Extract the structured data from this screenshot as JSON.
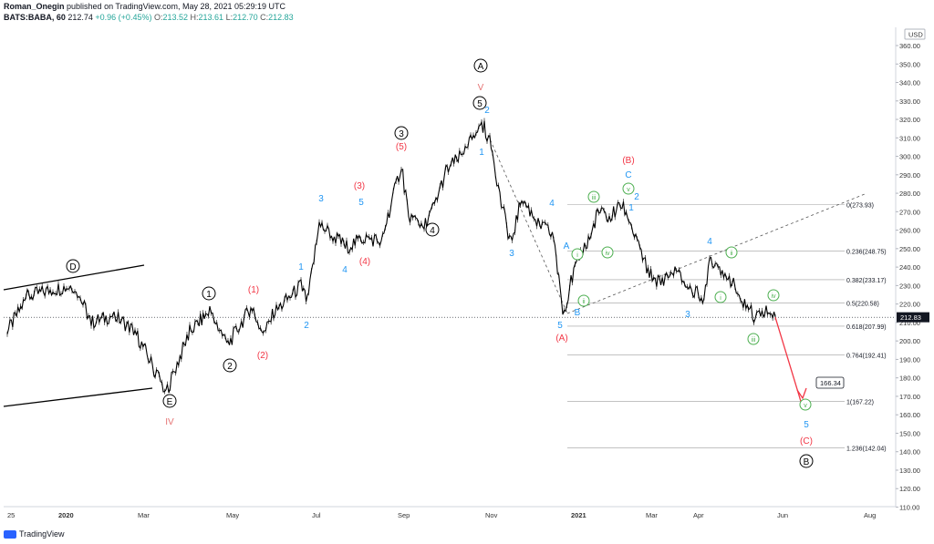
{
  "header": {
    "author": "Roman_Onegin",
    "published": "published on TradingView.com, May 28, 2021 05:29:19 UTC",
    "symbol": "BATS:BABA, 60",
    "last": "212.74",
    "change": "+0.96 (+0.45%)",
    "o_label": "O:",
    "o": "213.52",
    "h_label": "H:",
    "h": "213.61",
    "l_label": "L:",
    "l": "212.70",
    "c_label": "C:",
    "c": "212.83"
  },
  "watermark": "TradingView",
  "chart_data": {
    "type": "line",
    "currency": "USD",
    "ylim": [
      110,
      360
    ],
    "y_ticks": [
      "110.00",
      "120.00",
      "130.00",
      "140.00",
      "150.00",
      "160.00",
      "170.00",
      "180.00",
      "190.00",
      "200.00",
      "210.00",
      "220.00",
      "230.00",
      "240.00",
      "250.00",
      "260.00",
      "270.00",
      "280.00",
      "290.00",
      "300.00",
      "310.00",
      "320.00",
      "330.00",
      "340.00",
      "350.00",
      "360.00"
    ],
    "x_ticks": [
      "25",
      "2020",
      "Mar",
      "May",
      "Jul",
      "Sep",
      "Nov",
      "2021",
      "Mar",
      "Apr",
      "Jun",
      "Aug"
    ],
    "last_price": "212.83",
    "series": [
      {
        "x": [
          "25",
          "2020",
          "Mar",
          "May",
          "Jul",
          "Sep",
          "Nov",
          "2021",
          "Mar",
          "Apr",
          "Jun"
        ],
        "values": [
          203,
          222,
          192,
          213,
          228,
          263,
          305,
          230,
          266,
          234,
          212.83
        ],
        "path": [
          [
            8,
            205
          ],
          [
            30,
            224
          ],
          [
            58,
            228
          ],
          [
            82,
            230
          ],
          [
            100,
            210
          ],
          [
            125,
            214
          ],
          [
            148,
            205
          ],
          [
            170,
            184
          ],
          [
            182,
            172
          ],
          [
            208,
            205
          ],
          [
            230,
            216
          ],
          [
            250,
            198
          ],
          [
            275,
            218
          ],
          [
            290,
            204
          ],
          [
            300,
            215
          ],
          [
            330,
            230
          ],
          [
            337,
            221
          ],
          [
            350,
            263
          ],
          [
            365,
            257
          ],
          [
            380,
            251
          ],
          [
            400,
            256
          ],
          [
            418,
            254
          ],
          [
            440,
            295
          ],
          [
            448,
            268
          ],
          [
            465,
            262
          ],
          [
            475,
            272
          ],
          [
            490,
            293
          ],
          [
            510,
            302
          ],
          [
            525,
            318
          ],
          [
            531,
            316
          ],
          [
            540,
            303
          ],
          [
            548,
            278
          ],
          [
            560,
            253
          ],
          [
            572,
            277
          ],
          [
            590,
            264
          ],
          [
            607,
            257
          ],
          [
            617,
            214
          ],
          [
            626,
            232
          ],
          [
            635,
            246
          ],
          [
            648,
            257
          ],
          [
            655,
            270
          ],
          [
            668,
            267
          ],
          [
            682,
            274
          ],
          [
            688,
            268
          ],
          [
            700,
            251
          ],
          [
            712,
            236
          ],
          [
            723,
            232
          ],
          [
            740,
            238
          ],
          [
            758,
            227
          ],
          [
            772,
            224
          ],
          [
            778,
            245
          ],
          [
            798,
            236
          ],
          [
            812,
            223
          ],
          [
            828,
            213
          ],
          [
            840,
            218
          ],
          [
            850,
            213
          ]
        ]
      }
    ],
    "fib_levels": [
      {
        "ratio": "0(273.93)",
        "value": 273.93
      },
      {
        "ratio": "0.236(248.75)",
        "value": 248.75
      },
      {
        "ratio": "0.382(233.17)",
        "value": 233.17
      },
      {
        "ratio": "0.5(220.58)",
        "value": 220.58
      },
      {
        "ratio": "0.618(207.99)",
        "value": 207.99
      },
      {
        "ratio": "0.764(192.41)",
        "value": 192.41
      },
      {
        "ratio": "1(167.22)",
        "value": 167.22
      },
      {
        "ratio": "1.236(142.04)",
        "value": 142.04
      }
    ],
    "target_label": "166.34",
    "wave_labels": [
      {
        "t": "D",
        "c": "black",
        "circle": true,
        "x": 80,
        "y": 292
      },
      {
        "t": "E",
        "c": "black",
        "circle": true,
        "x": 186,
        "y": 440
      },
      {
        "t": "IV",
        "c": "#e57373",
        "x": 186,
        "y": 462
      },
      {
        "t": "1",
        "c": "black",
        "circle": true,
        "x": 229,
        "y": 322
      },
      {
        "t": "2",
        "c": "black",
        "circle": true,
        "x": 252,
        "y": 401
      },
      {
        "t": "3",
        "c": "black",
        "circle": true,
        "x": 440,
        "y": 146
      },
      {
        "t": "4",
        "c": "black",
        "circle": true,
        "x": 474,
        "y": 252
      },
      {
        "t": "5",
        "c": "black",
        "circle": true,
        "x": 526,
        "y": 113
      },
      {
        "t": "A",
        "c": "black",
        "circle": true,
        "x": 527,
        "y": 72
      },
      {
        "t": "B",
        "c": "black",
        "circle": true,
        "x": 884,
        "y": 506
      },
      {
        "t": "V",
        "c": "#e57373",
        "x": 527,
        "y": 95
      },
      {
        "t": "(1)",
        "c": "#f23645",
        "x": 278,
        "y": 317
      },
      {
        "t": "(2)",
        "c": "#f23645",
        "x": 288,
        "y": 389
      },
      {
        "t": "(3)",
        "c": "#f23645",
        "x": 394,
        "y": 203
      },
      {
        "t": "(4)",
        "c": "#f23645",
        "x": 400,
        "y": 286
      },
      {
        "t": "(5)",
        "c": "#f23645",
        "x": 440,
        "y": 160
      },
      {
        "t": "(A)",
        "c": "#f23645",
        "x": 616,
        "y": 370
      },
      {
        "t": "(B)",
        "c": "#f23645",
        "x": 689,
        "y": 175
      },
      {
        "t": "(C)",
        "c": "#f23645",
        "x": 884,
        "y": 483
      },
      {
        "t": "1",
        "c": "#2196f3",
        "x": 330,
        "y": 292
      },
      {
        "t": "2",
        "c": "#2196f3",
        "x": 336,
        "y": 356
      },
      {
        "t": "3",
        "c": "#2196f3",
        "x": 352,
        "y": 217
      },
      {
        "t": "4",
        "c": "#2196f3",
        "x": 378,
        "y": 295
      },
      {
        "t": "5",
        "c": "#2196f3",
        "x": 396,
        "y": 221
      },
      {
        "t": "1",
        "c": "#2196f3",
        "x": 528,
        "y": 166
      },
      {
        "t": "2",
        "c": "#2196f3",
        "x": 534,
        "y": 120
      },
      {
        "t": "3",
        "c": "#2196f3",
        "x": 561,
        "y": 277
      },
      {
        "t": "4",
        "c": "#2196f3",
        "x": 605,
        "y": 222
      },
      {
        "t": "5",
        "c": "#2196f3",
        "x": 614,
        "y": 356
      },
      {
        "t": "A",
        "c": "#2196f3",
        "x": 621,
        "y": 269
      },
      {
        "t": "B",
        "c": "#2196f3",
        "x": 633,
        "y": 342
      },
      {
        "t": "C",
        "c": "#2196f3",
        "x": 689,
        "y": 191
      },
      {
        "t": "1",
        "c": "#2196f3",
        "x": 692,
        "y": 227
      },
      {
        "t": "2",
        "c": "#2196f3",
        "x": 698,
        "y": 215
      },
      {
        "t": "3",
        "c": "#2196f3",
        "x": 754,
        "y": 344
      },
      {
        "t": "4",
        "c": "#2196f3",
        "x": 778,
        "y": 264
      },
      {
        "t": "5",
        "c": "#2196f3",
        "x": 884,
        "y": 465
      },
      {
        "t": "i",
        "c": "#4caf50",
        "circle": true,
        "small": true,
        "x": 633,
        "y": 279
      },
      {
        "t": "ii",
        "c": "#4caf50",
        "circle": true,
        "small": true,
        "x": 640,
        "y": 330
      },
      {
        "t": "iii",
        "c": "#4caf50",
        "circle": true,
        "small": true,
        "x": 651,
        "y": 216
      },
      {
        "t": "iv",
        "c": "#4caf50",
        "circle": true,
        "small": true,
        "x": 666,
        "y": 277
      },
      {
        "t": "v",
        "c": "#4caf50",
        "circle": true,
        "small": true,
        "x": 689,
        "y": 207
      },
      {
        "t": "i",
        "c": "#4caf50",
        "circle": true,
        "small": true,
        "x": 790,
        "y": 326
      },
      {
        "t": "ii",
        "c": "#4caf50",
        "circle": true,
        "small": true,
        "x": 802,
        "y": 277
      },
      {
        "t": "iii",
        "c": "#4caf50",
        "circle": true,
        "small": true,
        "x": 826,
        "y": 372
      },
      {
        "t": "iv",
        "c": "#4caf50",
        "circle": true,
        "small": true,
        "x": 848,
        "y": 324
      },
      {
        "t": "v",
        "c": "#4caf50",
        "circle": true,
        "small": true,
        "x": 883,
        "y": 444
      }
    ],
    "colors": {
      "candles": "#000000",
      "fib": "#9e9e9e",
      "arrow": "#f23645",
      "blue": "#2196f3",
      "red": "#f23645",
      "green": "#4caf50"
    }
  }
}
